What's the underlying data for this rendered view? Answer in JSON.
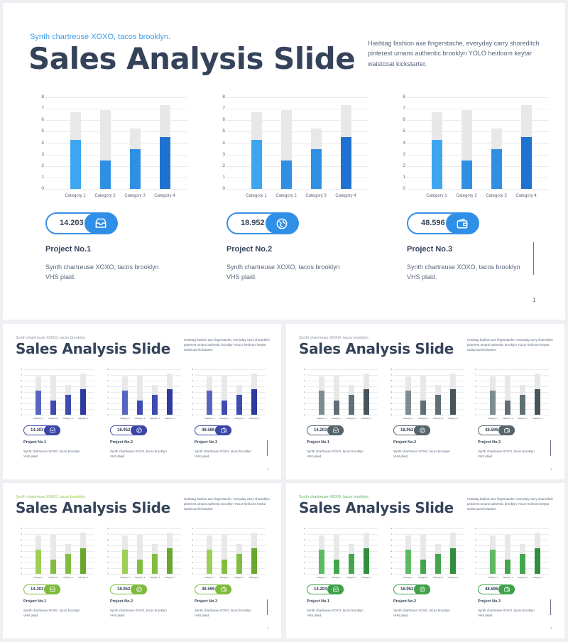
{
  "slides": [
    {
      "id": "s-main",
      "size": "main",
      "subtitle": "Synth chartreuse XOXO, tacos brooklyn.",
      "title": "Sales Analysis Slide",
      "description": "Hashtag fashion axe fingerstache, everyday carry shoreditch pinterest umami authentic brooklyn YOLO heirloom keytar waistcoat kickstarter.",
      "page_number": "1",
      "colors": {
        "subtitle": "#3b9be8",
        "bar_light": "#3ea6f0",
        "bar_mid": "#2f8fe3",
        "bar_dark": "#1f72cf",
        "pill_border": "#3a8fe6",
        "pill_icon": "#2f8fe6"
      }
    },
    {
      "id": "s-blue",
      "size": "mini",
      "subtitle": "Synth chartreuse XOXO, tacos brooklyn.",
      "title": "Sales Analysis Slide",
      "description": "Hashtag fashion axe fingerstache, everyday carry shoreditch pinterest umami authentic brooklyn YOLO heirloom keytar waistcoat kickstarter.",
      "page_number": "1",
      "colors": {
        "subtitle": "#8a93a3",
        "bar_light": "#5865c0",
        "bar_mid": "#3f4bb0",
        "bar_dark": "#2e3a9e",
        "pill_border": "#3a47a8",
        "pill_icon": "#3a47a8"
      }
    },
    {
      "id": "s-slate",
      "size": "mini",
      "subtitle": "Synth chartreuse XOXO, tacos brooklyn.",
      "title": "Sales Analysis Slide",
      "description": "Hashtag fashion axe fingerstache, everyday carry shoreditch pinterest umami authentic brooklyn YOLO heirloom keytar waistcoat kickstarter.",
      "page_number": "1",
      "colors": {
        "subtitle": "#8a93a3",
        "bar_light": "#7d8c92",
        "bar_mid": "#5f6f77",
        "bar_dark": "#46545c",
        "pill_border": "#56656d",
        "pill_icon": "#56656d"
      }
    },
    {
      "id": "s-lime",
      "size": "mini",
      "subtitle": "Synth chartreuse XOXO, tacos brooklyn.",
      "title": "Sales Analysis Slide",
      "description": "Hashtag fashion axe fingerstache, everyday carry shoreditch pinterest umami authentic brooklyn YOLO heirloom keytar waistcoat kickstarter.",
      "page_number": "1",
      "colors": {
        "subtitle": "#8cc63f",
        "bar_light": "#9ccf55",
        "bar_mid": "#82bd3f",
        "bar_dark": "#6aa72e",
        "pill_border": "#7dbb3c",
        "pill_icon": "#7dbb3c"
      }
    },
    {
      "id": "s-green",
      "size": "mini",
      "subtitle": "Synth chartreuse XOXO, tacos brooklyn.",
      "title": "Sales Analysis Slide",
      "description": "Hashtag fashion axe fingerstache, everyday carry shoreditch pinterest umami authentic brooklyn YOLO heirloom keytar waistcoat kickstarter.",
      "page_number": "1",
      "colors": {
        "subtitle": "#55b160",
        "bar_light": "#5cbb62",
        "bar_mid": "#43a64c",
        "bar_dark": "#2f8f3d",
        "pill_border": "#3fa24a",
        "pill_icon": "#3fa24a"
      }
    }
  ],
  "projects": [
    {
      "value": "14.203",
      "name": "Project No.1",
      "description": "Synth chartreuse XOXO, tacos brooklyn VHS plaid.",
      "icon": "inbox-tray-icon"
    },
    {
      "value": "18.952",
      "name": "Project No.2",
      "description": "Synth chartreuse XOXO, tacos brooklyn VHS plaid.",
      "icon": "globe-icon"
    },
    {
      "value": "48.596",
      "name": "Project No.3",
      "description": "Synth chartreuse XOXO, tacos brooklyn VHS plaid.",
      "icon": "wallet-icon"
    }
  ],
  "chart_data": {
    "type": "bar",
    "stacked_overlay": true,
    "categories": [
      "Category 1",
      "Category 2",
      "Category 3",
      "Category 4"
    ],
    "series": [
      {
        "values": [
          4.3,
          2.5,
          3.5,
          4.5
        ]
      },
      {
        "values": [
          6.7,
          6.9,
          5.3,
          7.3
        ]
      }
    ],
    "ylim": [
      0,
      8
    ],
    "yticks": [
      "0",
      "1",
      "2",
      "3",
      "4",
      "5",
      "6",
      "7",
      "8"
    ],
    "grid": true
  }
}
